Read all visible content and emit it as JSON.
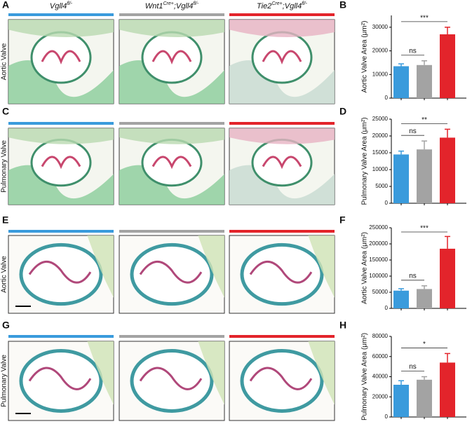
{
  "figure": {
    "column_headers": [
      [
        {
          "text": "Vgll4"
        },
        {
          "sup": "fl/-"
        }
      ],
      [
        {
          "text": "Wnt1"
        },
        {
          "sup": "Cre+"
        },
        {
          "text": ";Vgll4"
        },
        {
          "sup": "fl/-"
        }
      ],
      [
        {
          "text": "Tie2"
        },
        {
          "sup": "Cre+"
        },
        {
          "text": ";Vgll4"
        },
        {
          "sup": "fl/-"
        }
      ]
    ],
    "panels": [
      {
        "label": "A",
        "row_label": "Aortic Valve"
      },
      {
        "label": "C",
        "row_label": "Pulmonary Valve"
      },
      {
        "label": "E",
        "row_label": "Aortic Valve"
      },
      {
        "label": "G",
        "row_label": "Pulmonary Valve"
      }
    ]
  },
  "chart_data": [
    {
      "type": "bar",
      "label": "B",
      "ylabel": "Aortic Valve Area (μm²)",
      "categories": [
        null,
        null,
        null
      ],
      "values": [
        13500,
        14000,
        27000
      ],
      "errors": [
        1000,
        1800,
        3000
      ],
      "colors": [
        "#3a9bdc",
        "#a3a3a3",
        "#e3242b"
      ],
      "ylim": [
        0,
        35000
      ],
      "yticks": [
        0,
        10000,
        20000,
        30000
      ],
      "significance": {
        "outer": "***",
        "inner": "ns"
      }
    },
    {
      "type": "bar",
      "label": "D",
      "ylabel": "Pulmonary Valve Area (μm²)",
      "categories": [
        null,
        null,
        null
      ],
      "values": [
        14500,
        16000,
        19500
      ],
      "errors": [
        1000,
        2500,
        2500
      ],
      "colors": [
        "#3a9bdc",
        "#a3a3a3",
        "#e3242b"
      ],
      "ylim": [
        0,
        25000
      ],
      "yticks": [
        0,
        5000,
        10000,
        15000,
        20000,
        25000
      ],
      "significance": {
        "outer": "**",
        "inner": "ns"
      }
    },
    {
      "type": "bar",
      "label": "F",
      "ylabel": "Aortic Valve Area (μm²)",
      "categories": [
        null,
        null,
        null
      ],
      "values": [
        55000,
        60000,
        185000
      ],
      "errors": [
        6000,
        10000,
        38000
      ],
      "colors": [
        "#3a9bdc",
        "#a3a3a3",
        "#e3242b"
      ],
      "ylim": [
        0,
        250000
      ],
      "yticks": [
        0,
        50000,
        100000,
        150000,
        200000,
        250000
      ],
      "significance": {
        "outer": "***",
        "inner": "ns"
      }
    },
    {
      "type": "bar",
      "label": "H",
      "ylabel": "Pulmonary Valve Area (μm²)",
      "categories": [
        null,
        null,
        null
      ],
      "values": [
        32000,
        37000,
        54000
      ],
      "errors": [
        4000,
        3000,
        9000
      ],
      "colors": [
        "#3a9bdc",
        "#a3a3a3",
        "#e3242b"
      ],
      "ylim": [
        0,
        80000
      ],
      "yticks": [
        0,
        20000,
        40000,
        60000,
        80000
      ],
      "significance": {
        "outer": "*",
        "inner": "ns"
      }
    }
  ]
}
